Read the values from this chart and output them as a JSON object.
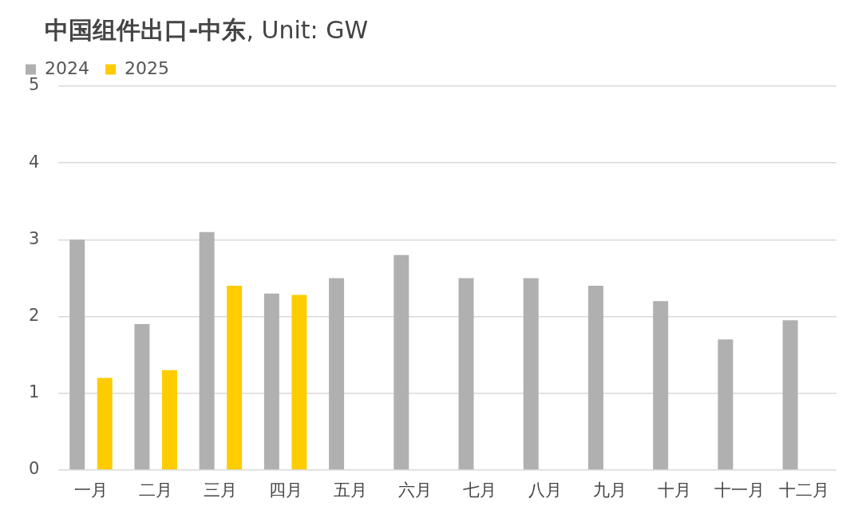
{
  "chart_data": {
    "type": "bar",
    "title": "中国组件出口-中东",
    "subtitle": ", Unit: GW",
    "categories": [
      "一月",
      "二月",
      "三月",
      "四月",
      "五月",
      "六月",
      "七月",
      "八月",
      "九月",
      "十月",
      "十一月",
      "十二月"
    ],
    "series": [
      {
        "name": "2024",
        "color": "#b0b0b0",
        "values": [
          3.0,
          1.9,
          3.1,
          2.3,
          2.5,
          2.8,
          2.5,
          2.5,
          2.4,
          2.2,
          1.7,
          1.95
        ]
      },
      {
        "name": "2025",
        "color": "#ffcc00",
        "values": [
          1.2,
          1.3,
          2.4,
          2.28,
          null,
          null,
          null,
          null,
          null,
          null,
          null,
          null
        ]
      }
    ],
    "ylim": [
      0,
      5
    ],
    "yticks": [
      0,
      1,
      2,
      3,
      4,
      5
    ],
    "grid": "y",
    "legend": "top left"
  }
}
